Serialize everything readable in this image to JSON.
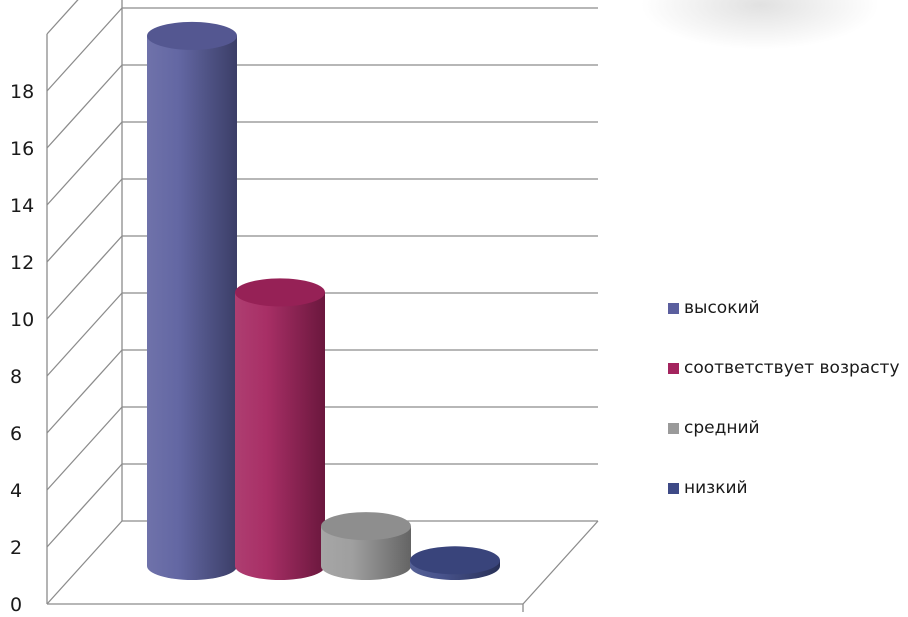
{
  "chart_data": {
    "type": "bar",
    "style": "3d-cylinder",
    "categories": [
      "высокий",
      "соответствует возрасту",
      "средний",
      "низкий"
    ],
    "values": [
      18.6,
      9.6,
      1.4,
      0.2
    ],
    "colors": [
      "#5b5f9e",
      "#a3245e",
      "#9a9a9a",
      "#3e4a86"
    ],
    "ylim": [
      0,
      20
    ],
    "yticks": [
      0,
      2,
      4,
      6,
      8,
      10,
      12,
      14,
      16,
      18
    ],
    "grid": true,
    "legend_position": "right",
    "legend": [
      {
        "label": "высокий",
        "color": "#5b5f9e"
      },
      {
        "label": "соответствует возрасту",
        "color": "#a3245e"
      },
      {
        "label": "средний",
        "color": "#9a9a9a"
      },
      {
        "label": "низкий",
        "color": "#3e4a86"
      }
    ]
  }
}
